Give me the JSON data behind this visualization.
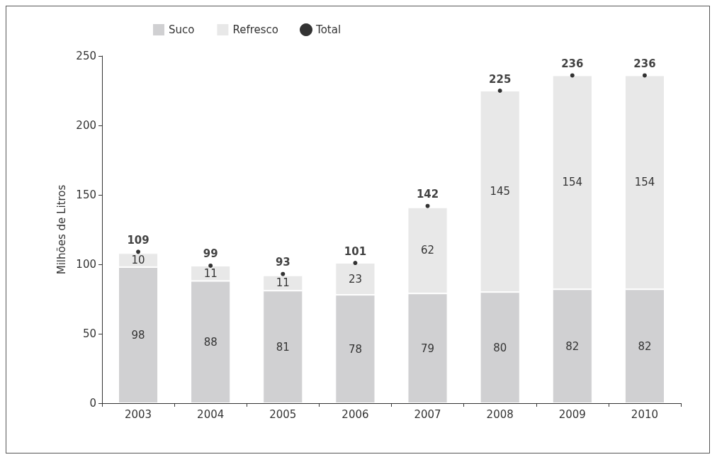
{
  "chart_data": {
    "type": "bar",
    "stacked": true,
    "ylabel": "Milhões de Litros",
    "categories": [
      "2003",
      "2004",
      "2005",
      "2006",
      "2007",
      "2008",
      "2009",
      "2010"
    ],
    "series": [
      {
        "name": "Suco",
        "color": "#d0d0d2",
        "values": [
          98,
          88,
          81,
          78,
          79,
          80,
          82,
          82
        ]
      },
      {
        "name": "Refresco",
        "color": "#e8e8e8",
        "values": [
          10,
          11,
          11,
          23,
          62,
          145,
          154,
          154
        ]
      },
      {
        "name": "Total",
        "type": "scatter",
        "color": "#000000",
        "values": [
          109,
          99,
          93,
          101,
          142,
          225,
          236,
          236
        ]
      }
    ],
    "ylim": [
      0,
      250
    ],
    "yticks": [
      0,
      50,
      100,
      150,
      200,
      250
    ],
    "grid": false,
    "legend": "top left",
    "marker": "circle",
    "data_labels": true
  }
}
